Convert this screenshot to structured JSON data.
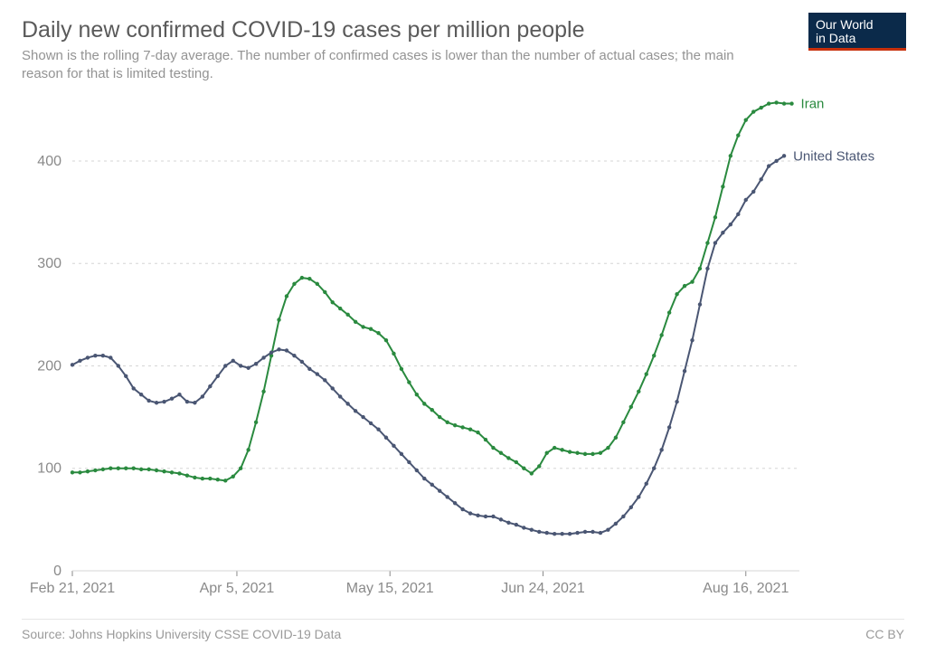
{
  "header": {
    "title": "Daily new confirmed COVID-19 cases per million people",
    "subtitle": "Shown is the rolling 7-day average. The number of confirmed cases is lower than the number of actual cases; the main reason for that is limited testing."
  },
  "logo": {
    "line1": "Our World",
    "line2": "in Data"
  },
  "footer": {
    "source": "Source: Johns Hopkins University CSSE COVID-19 Data",
    "license": "CC BY"
  },
  "chart": {
    "type": "line",
    "background_color": "#ffffff",
    "grid_color": "#d6d6d6",
    "axis_text_color": "#8a8a8a",
    "x_domain": [
      0,
      190
    ],
    "y_domain": [
      0,
      460
    ],
    "y_ticks": [
      0,
      100,
      200,
      300,
      400
    ],
    "x_ticks": [
      {
        "pos": 0,
        "label": "Feb 21, 2021"
      },
      {
        "pos": 43,
        "label": "Apr 5, 2021"
      },
      {
        "pos": 83,
        "label": "May 15, 2021"
      },
      {
        "pos": 123,
        "label": "Jun 24, 2021"
      },
      {
        "pos": 176,
        "label": "Aug 16, 2021"
      }
    ],
    "line_width": 2,
    "marker_radius": 2.2,
    "series": [
      {
        "name": "Iran",
        "label": "Iran",
        "color": "#2a8a3f",
        "points": [
          [
            0,
            96
          ],
          [
            2,
            96
          ],
          [
            4,
            97
          ],
          [
            6,
            98
          ],
          [
            8,
            99
          ],
          [
            10,
            100
          ],
          [
            12,
            100
          ],
          [
            14,
            100
          ],
          [
            16,
            100
          ],
          [
            18,
            99
          ],
          [
            20,
            99
          ],
          [
            22,
            98
          ],
          [
            24,
            97
          ],
          [
            26,
            96
          ],
          [
            28,
            95
          ],
          [
            30,
            93
          ],
          [
            32,
            91
          ],
          [
            34,
            90
          ],
          [
            36,
            90
          ],
          [
            38,
            89
          ],
          [
            40,
            88
          ],
          [
            42,
            92
          ],
          [
            44,
            100
          ],
          [
            46,
            118
          ],
          [
            48,
            145
          ],
          [
            50,
            175
          ],
          [
            52,
            210
          ],
          [
            54,
            245
          ],
          [
            56,
            268
          ],
          [
            58,
            280
          ],
          [
            60,
            286
          ],
          [
            62,
            285
          ],
          [
            64,
            280
          ],
          [
            66,
            272
          ],
          [
            68,
            262
          ],
          [
            70,
            256
          ],
          [
            72,
            250
          ],
          [
            74,
            243
          ],
          [
            76,
            238
          ],
          [
            78,
            236
          ],
          [
            80,
            232
          ],
          [
            82,
            225
          ],
          [
            84,
            212
          ],
          [
            86,
            197
          ],
          [
            88,
            184
          ],
          [
            90,
            172
          ],
          [
            92,
            163
          ],
          [
            94,
            157
          ],
          [
            96,
            150
          ],
          [
            98,
            145
          ],
          [
            100,
            142
          ],
          [
            102,
            140
          ],
          [
            104,
            138
          ],
          [
            106,
            135
          ],
          [
            108,
            128
          ],
          [
            110,
            120
          ],
          [
            112,
            115
          ],
          [
            114,
            110
          ],
          [
            116,
            106
          ],
          [
            118,
            100
          ],
          [
            120,
            95
          ],
          [
            122,
            102
          ],
          [
            124,
            115
          ],
          [
            126,
            120
          ],
          [
            128,
            118
          ],
          [
            130,
            116
          ],
          [
            132,
            115
          ],
          [
            134,
            114
          ],
          [
            136,
            114
          ],
          [
            138,
            115
          ],
          [
            140,
            120
          ],
          [
            142,
            130
          ],
          [
            144,
            145
          ],
          [
            146,
            160
          ],
          [
            148,
            175
          ],
          [
            150,
            192
          ],
          [
            152,
            210
          ],
          [
            154,
            230
          ],
          [
            156,
            252
          ],
          [
            158,
            270
          ],
          [
            160,
            278
          ],
          [
            162,
            282
          ],
          [
            164,
            295
          ],
          [
            166,
            320
          ],
          [
            168,
            345
          ],
          [
            170,
            375
          ],
          [
            172,
            405
          ],
          [
            174,
            425
          ],
          [
            176,
            440
          ],
          [
            178,
            448
          ],
          [
            180,
            452
          ],
          [
            182,
            456
          ],
          [
            184,
            457
          ],
          [
            186,
            456
          ],
          [
            188,
            456
          ]
        ]
      },
      {
        "name": "United States",
        "label": "United States",
        "color": "#4a5673",
        "points": [
          [
            0,
            201
          ],
          [
            2,
            205
          ],
          [
            4,
            208
          ],
          [
            6,
            210
          ],
          [
            8,
            210
          ],
          [
            10,
            208
          ],
          [
            12,
            200
          ],
          [
            14,
            190
          ],
          [
            16,
            178
          ],
          [
            18,
            172
          ],
          [
            20,
            166
          ],
          [
            22,
            164
          ],
          [
            24,
            165
          ],
          [
            26,
            168
          ],
          [
            28,
            172
          ],
          [
            30,
            165
          ],
          [
            32,
            164
          ],
          [
            34,
            170
          ],
          [
            36,
            180
          ],
          [
            38,
            190
          ],
          [
            40,
            200
          ],
          [
            42,
            205
          ],
          [
            44,
            200
          ],
          [
            46,
            198
          ],
          [
            48,
            202
          ],
          [
            50,
            208
          ],
          [
            52,
            213
          ],
          [
            54,
            216
          ],
          [
            56,
            215
          ],
          [
            58,
            210
          ],
          [
            60,
            204
          ],
          [
            62,
            197
          ],
          [
            64,
            192
          ],
          [
            66,
            186
          ],
          [
            68,
            178
          ],
          [
            70,
            170
          ],
          [
            72,
            163
          ],
          [
            74,
            156
          ],
          [
            76,
            150
          ],
          [
            78,
            144
          ],
          [
            80,
            138
          ],
          [
            82,
            130
          ],
          [
            84,
            122
          ],
          [
            86,
            114
          ],
          [
            88,
            106
          ],
          [
            90,
            98
          ],
          [
            92,
            90
          ],
          [
            94,
            84
          ],
          [
            96,
            78
          ],
          [
            98,
            72
          ],
          [
            100,
            66
          ],
          [
            102,
            60
          ],
          [
            104,
            56
          ],
          [
            106,
            54
          ],
          [
            108,
            53
          ],
          [
            110,
            53
          ],
          [
            112,
            50
          ],
          [
            114,
            47
          ],
          [
            116,
            45
          ],
          [
            118,
            42
          ],
          [
            120,
            40
          ],
          [
            122,
            38
          ],
          [
            124,
            37
          ],
          [
            126,
            36
          ],
          [
            128,
            36
          ],
          [
            130,
            36
          ],
          [
            132,
            37
          ],
          [
            134,
            38
          ],
          [
            136,
            38
          ],
          [
            138,
            37
          ],
          [
            140,
            40
          ],
          [
            142,
            46
          ],
          [
            144,
            53
          ],
          [
            146,
            62
          ],
          [
            148,
            72
          ],
          [
            150,
            85
          ],
          [
            152,
            100
          ],
          [
            154,
            118
          ],
          [
            156,
            140
          ],
          [
            158,
            165
          ],
          [
            160,
            195
          ],
          [
            162,
            225
          ],
          [
            164,
            260
          ],
          [
            166,
            295
          ],
          [
            168,
            320
          ],
          [
            170,
            330
          ],
          [
            172,
            338
          ],
          [
            174,
            348
          ],
          [
            176,
            362
          ],
          [
            178,
            370
          ],
          [
            180,
            382
          ],
          [
            182,
            395
          ],
          [
            184,
            400
          ],
          [
            186,
            405
          ]
        ]
      }
    ]
  }
}
